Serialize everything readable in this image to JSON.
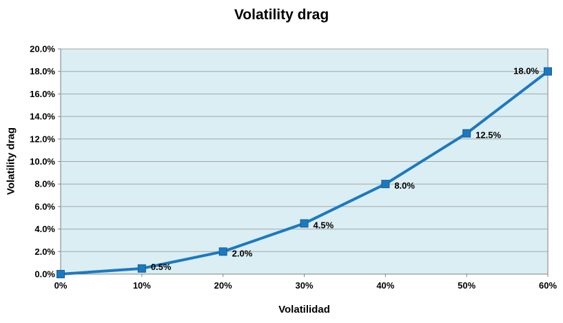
{
  "chart_data": {
    "type": "line",
    "title": "Volatility drag",
    "xlabel": "Volatilidad",
    "ylabel": "Volatility drag",
    "x": [
      0,
      10,
      20,
      30,
      40,
      50,
      60
    ],
    "values": [
      0.0,
      0.5,
      2.0,
      4.5,
      8.0,
      12.5,
      18.0
    ],
    "x_tick_labels": [
      "0%",
      "10%",
      "20%",
      "30%",
      "40%",
      "50%",
      "60%"
    ],
    "y_ticks": [
      0,
      2,
      4,
      6,
      8,
      10,
      12,
      14,
      16,
      18,
      20
    ],
    "y_tick_labels": [
      "0.0%",
      "2.0%",
      "4.0%",
      "6.0%",
      "8.0%",
      "10.0%",
      "12.0%",
      "14.0%",
      "16.0%",
      "18.0%",
      "20.0%"
    ],
    "data_labels": [
      "",
      "0.5%",
      "2.0%",
      "4.5%",
      "8.0%",
      "12.5%",
      "18.0%"
    ],
    "xlim": [
      0,
      60
    ],
    "ylim": [
      0,
      20
    ],
    "grid": true,
    "legend": "none",
    "colors": {
      "line": "#1c79c0",
      "marker": "#1c79c0",
      "marker_edge": "#155e93",
      "plot_bg": "#daeef3",
      "grid": "#a6a6a6",
      "border": "#7f7f7f",
      "text": "#000000"
    }
  }
}
